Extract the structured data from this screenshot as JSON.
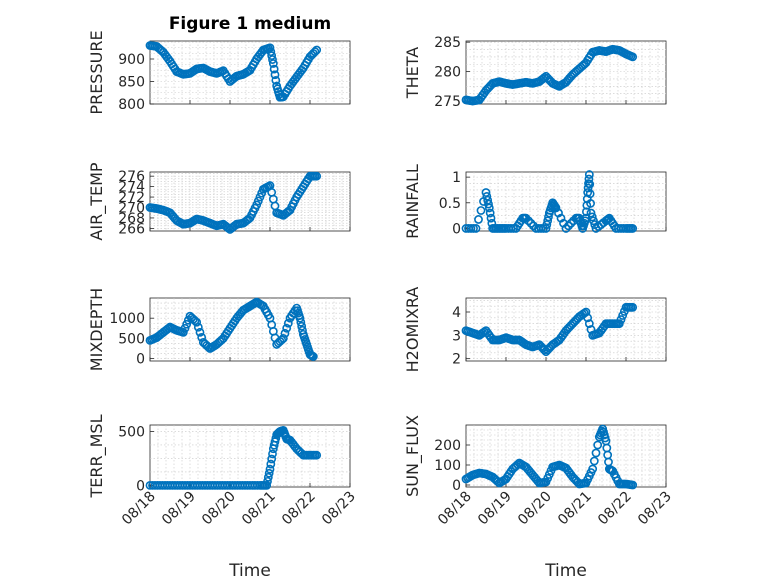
{
  "title": "Figure 1 medium",
  "colors": {
    "marker": "#0072BD",
    "axis": "#262626",
    "grid": "#c8c8c8"
  },
  "chart_data": [
    {
      "type": "scatter",
      "ylabel": "PRESSURE",
      "xlabel": "",
      "xlim": [
        "08/18",
        "08/23"
      ],
      "ylim": [
        800,
        940
      ],
      "yticks": [
        "800",
        "850",
        "900"
      ],
      "ytick_values": [
        800,
        850,
        900
      ],
      "grid": true,
      "marker": "open-circle",
      "x": [
        "08/18 00:00",
        "08/18 04:00",
        "08/18 08:00",
        "08/18 12:00",
        "08/18 16:00",
        "08/18 20:00",
        "08/19 00:00",
        "08/19 04:00",
        "08/19 08:00",
        "08/19 12:00",
        "08/19 16:00",
        "08/19 20:00",
        "08/20 00:00",
        "08/20 04:00",
        "08/20 08:00",
        "08/20 12:00",
        "08/20 16:00",
        "08/20 20:00",
        "08/21 00:00",
        "08/21 02:00",
        "08/21 04:00",
        "08/21 06:00",
        "08/21 08:00",
        "08/21 12:00",
        "08/21 16:00",
        "08/21 20:00",
        "08/22 00:00",
        "08/22 04:00"
      ],
      "y": [
        930,
        928,
        915,
        895,
        872,
        866,
        868,
        878,
        880,
        872,
        868,
        874,
        850,
        862,
        866,
        875,
        900,
        920,
        925,
        890,
        840,
        815,
        816,
        840,
        860,
        880,
        905,
        920
      ]
    },
    {
      "type": "scatter",
      "ylabel": "THETA",
      "xlabel": "",
      "xlim": [
        "08/18",
        "08/23"
      ],
      "ylim": [
        274.5,
        285.2
      ],
      "yticks": [
        "275",
        "280",
        "285"
      ],
      "ytick_values": [
        275,
        280,
        285
      ],
      "grid": true,
      "marker": "open-circle",
      "x": [
        "08/18 00:00",
        "08/18 04:00",
        "08/18 08:00",
        "08/18 12:00",
        "08/18 16:00",
        "08/18 20:00",
        "08/19 00:00",
        "08/19 04:00",
        "08/19 08:00",
        "08/19 12:00",
        "08/19 16:00",
        "08/19 20:00",
        "08/20 00:00",
        "08/20 04:00",
        "08/20 08:00",
        "08/20 12:00",
        "08/20 16:00",
        "08/20 20:00",
        "08/21 00:00",
        "08/21 04:00",
        "08/21 08:00",
        "08/21 12:00",
        "08/21 16:00",
        "08/21 20:00",
        "08/22 00:00",
        "08/22 04:00"
      ],
      "y": [
        275.2,
        275.0,
        275.2,
        276.8,
        278.0,
        278.3,
        278.0,
        277.8,
        278.0,
        278.2,
        278.0,
        278.3,
        279.2,
        278.0,
        277.5,
        278.2,
        279.5,
        280.5,
        281.5,
        283.3,
        283.6,
        283.4,
        283.8,
        283.6,
        283.0,
        282.5
      ]
    },
    {
      "type": "scatter",
      "ylabel": "AIR_TEMP",
      "xlabel": "",
      "xlim": [
        "08/18",
        "08/23"
      ],
      "ylim": [
        265.5,
        276.8
      ],
      "yticks": [
        "266",
        "268",
        "270",
        "272",
        "274",
        "276"
      ],
      "ytick_values": [
        266,
        268,
        270,
        272,
        274,
        276
      ],
      "grid": true,
      "marker": "open-circle",
      "x": [
        "08/18 00:00",
        "08/18 04:00",
        "08/18 08:00",
        "08/18 12:00",
        "08/18 16:00",
        "08/18 20:00",
        "08/19 00:00",
        "08/19 04:00",
        "08/19 08:00",
        "08/19 12:00",
        "08/19 16:00",
        "08/19 20:00",
        "08/20 00:00",
        "08/20 04:00",
        "08/20 08:00",
        "08/20 12:00",
        "08/20 16:00",
        "08/20 20:00",
        "08/21 00:00",
        "08/21 04:00",
        "08/21 08:00",
        "08/21 12:00",
        "08/21 16:00",
        "08/21 20:00",
        "08/22 00:00",
        "08/22 04:00"
      ],
      "y": [
        270.0,
        269.8,
        269.5,
        269.0,
        267.5,
        266.8,
        267.0,
        267.8,
        267.5,
        267.0,
        266.5,
        266.8,
        265.8,
        266.8,
        267.0,
        268.0,
        270.5,
        273.5,
        274.2,
        269.0,
        268.5,
        269.5,
        272.0,
        274.0,
        276.0,
        276.0
      ]
    },
    {
      "type": "scatter",
      "ylabel": "RAINFALL",
      "xlabel": "",
      "xlim": [
        "08/18",
        "08/23"
      ],
      "ylim": [
        -0.05,
        1.1
      ],
      "yticks": [
        "0",
        "0.5",
        "1"
      ],
      "ytick_values": [
        0,
        0.5,
        1
      ],
      "grid": true,
      "marker": "open-circle",
      "x": [
        "08/18 00:00",
        "08/18 06:00",
        "08/18 12:00",
        "08/18 14:00",
        "08/18 16:00",
        "08/18 20:00",
        "08/19 00:00",
        "08/19 06:00",
        "08/19 10:00",
        "08/19 12:00",
        "08/19 18:00",
        "08/20 00:00",
        "08/20 02:00",
        "08/20 04:00",
        "08/20 06:00",
        "08/20 12:00",
        "08/20 18:00",
        "08/20 20:00",
        "08/20 22:00",
        "08/21 00:00",
        "08/21 01:00",
        "08/21 02:00",
        "08/21 03:00",
        "08/21 06:00",
        "08/21 12:00",
        "08/21 14:00",
        "08/21 18:00",
        "08/22 00:00",
        "08/22 04:00"
      ],
      "y": [
        0,
        0,
        0.7,
        0.4,
        0,
        0,
        0,
        0,
        0.2,
        0.2,
        0,
        0,
        0.3,
        0.5,
        0.4,
        0,
        0.2,
        0.2,
        0,
        0.2,
        0.7,
        1.05,
        0.3,
        0,
        0.15,
        0.2,
        0,
        0,
        0
      ]
    },
    {
      "type": "scatter",
      "ylabel": "MIXDEPTH",
      "xlabel": "",
      "xlim": [
        "08/18",
        "08/23"
      ],
      "ylim": [
        -60,
        1500
      ],
      "yticks": [
        "0",
        "500",
        "1000"
      ],
      "ytick_values": [
        0,
        500,
        1000
      ],
      "grid": true,
      "marker": "open-circle",
      "x": [
        "08/18 00:00",
        "08/18 04:00",
        "08/18 08:00",
        "08/18 12:00",
        "08/18 16:00",
        "08/18 20:00",
        "08/19 00:00",
        "08/19 04:00",
        "08/19 08:00",
        "08/19 12:00",
        "08/19 16:00",
        "08/19 20:00",
        "08/20 00:00",
        "08/20 04:00",
        "08/20 08:00",
        "08/20 12:00",
        "08/20 16:00",
        "08/20 20:00",
        "08/21 00:00",
        "08/21 04:00",
        "08/21 08:00",
        "08/21 12:00",
        "08/21 16:00",
        "08/21 18:00",
        "08/21 20:00",
        "08/21 22:00",
        "08/22 00:00",
        "08/22 02:00"
      ],
      "y": [
        450,
        520,
        650,
        780,
        700,
        650,
        1050,
        900,
        400,
        250,
        350,
        500,
        750,
        1000,
        1200,
        1300,
        1400,
        1300,
        1000,
        350,
        500,
        1000,
        1250,
        1000,
        600,
        350,
        100,
        50
      ]
    },
    {
      "type": "scatter",
      "ylabel": "H2OMIXRA",
      "xlabel": "",
      "xlim": [
        "08/18",
        "08/23"
      ],
      "ylim": [
        1.9,
        4.6
      ],
      "yticks": [
        "2",
        "3",
        "4"
      ],
      "ytick_values": [
        2,
        3,
        4
      ],
      "grid": true,
      "marker": "open-circle",
      "x": [
        "08/18 00:00",
        "08/18 04:00",
        "08/18 08:00",
        "08/18 12:00",
        "08/18 16:00",
        "08/18 20:00",
        "08/19 00:00",
        "08/19 04:00",
        "08/19 08:00",
        "08/19 12:00",
        "08/19 16:00",
        "08/19 20:00",
        "08/20 00:00",
        "08/20 04:00",
        "08/20 08:00",
        "08/20 12:00",
        "08/20 16:00",
        "08/20 20:00",
        "08/21 00:00",
        "08/21 04:00",
        "08/21 08:00",
        "08/21 12:00",
        "08/21 16:00",
        "08/21 20:00",
        "08/22 00:00",
        "08/22 04:00"
      ],
      "y": [
        3.2,
        3.1,
        3.0,
        3.2,
        2.8,
        2.8,
        2.9,
        2.8,
        2.8,
        2.6,
        2.5,
        2.6,
        2.3,
        2.6,
        2.8,
        3.2,
        3.5,
        3.8,
        4.0,
        3.0,
        3.1,
        3.5,
        3.5,
        3.5,
        4.2,
        4.2
      ]
    },
    {
      "type": "scatter",
      "ylabel": "TERR_MSL",
      "xlabel": "Time",
      "xlim": [
        "08/18",
        "08/23"
      ],
      "ylim": [
        -15,
        560
      ],
      "yticks": [
        "0",
        "500"
      ],
      "ytick_values": [
        0,
        500
      ],
      "xticks": [
        "08/18",
        "08/19",
        "08/20",
        "08/21",
        "08/22",
        "08/23"
      ],
      "grid": true,
      "marker": "open-circle",
      "x": [
        "08/18 00:00",
        "08/18 06:00",
        "08/18 12:00",
        "08/18 18:00",
        "08/19 00:00",
        "08/19 06:00",
        "08/19 12:00",
        "08/19 18:00",
        "08/20 00:00",
        "08/20 06:00",
        "08/20 12:00",
        "08/20 18:00",
        "08/20 22:00",
        "08/21 00:00",
        "08/21 02:00",
        "08/21 04:00",
        "08/21 06:00",
        "08/21 08:00",
        "08/21 10:00",
        "08/21 12:00",
        "08/21 16:00",
        "08/21 20:00",
        "08/22 00:00",
        "08/22 04:00"
      ],
      "y": [
        0,
        0,
        0,
        0,
        0,
        0,
        0,
        0,
        0,
        0,
        0,
        0,
        0,
        150,
        340,
        470,
        500,
        510,
        430,
        420,
        340,
        280,
        280,
        280
      ]
    },
    {
      "type": "scatter",
      "ylabel": "SUN_FLUX",
      "xlabel": "Time",
      "xlim": [
        "08/18",
        "08/23"
      ],
      "ylim": [
        -10,
        300
      ],
      "yticks": [
        "0",
        "100",
        "200"
      ],
      "ytick_values": [
        0,
        100,
        200
      ],
      "xticks": [
        "08/18",
        "08/19",
        "08/20",
        "08/21",
        "08/22",
        "08/23"
      ],
      "grid": true,
      "marker": "open-circle",
      "x": [
        "08/18 00:00",
        "08/18 04:00",
        "08/18 08:00",
        "08/18 12:00",
        "08/18 16:00",
        "08/18 20:00",
        "08/19 00:00",
        "08/19 04:00",
        "08/19 08:00",
        "08/19 12:00",
        "08/19 16:00",
        "08/19 20:00",
        "08/20 00:00",
        "08/20 04:00",
        "08/20 08:00",
        "08/20 12:00",
        "08/20 16:00",
        "08/20 20:00",
        "08/21 00:00",
        "08/21 04:00",
        "08/21 08:00",
        "08/21 10:00",
        "08/21 12:00",
        "08/21 14:00",
        "08/21 16:00",
        "08/21 20:00",
        "08/22 00:00",
        "08/22 04:00"
      ],
      "y": [
        30,
        50,
        60,
        55,
        40,
        10,
        30,
        80,
        110,
        90,
        50,
        10,
        15,
        90,
        100,
        85,
        40,
        5,
        10,
        80,
        240,
        280,
        220,
        80,
        70,
        5,
        5,
        0
      ]
    }
  ]
}
